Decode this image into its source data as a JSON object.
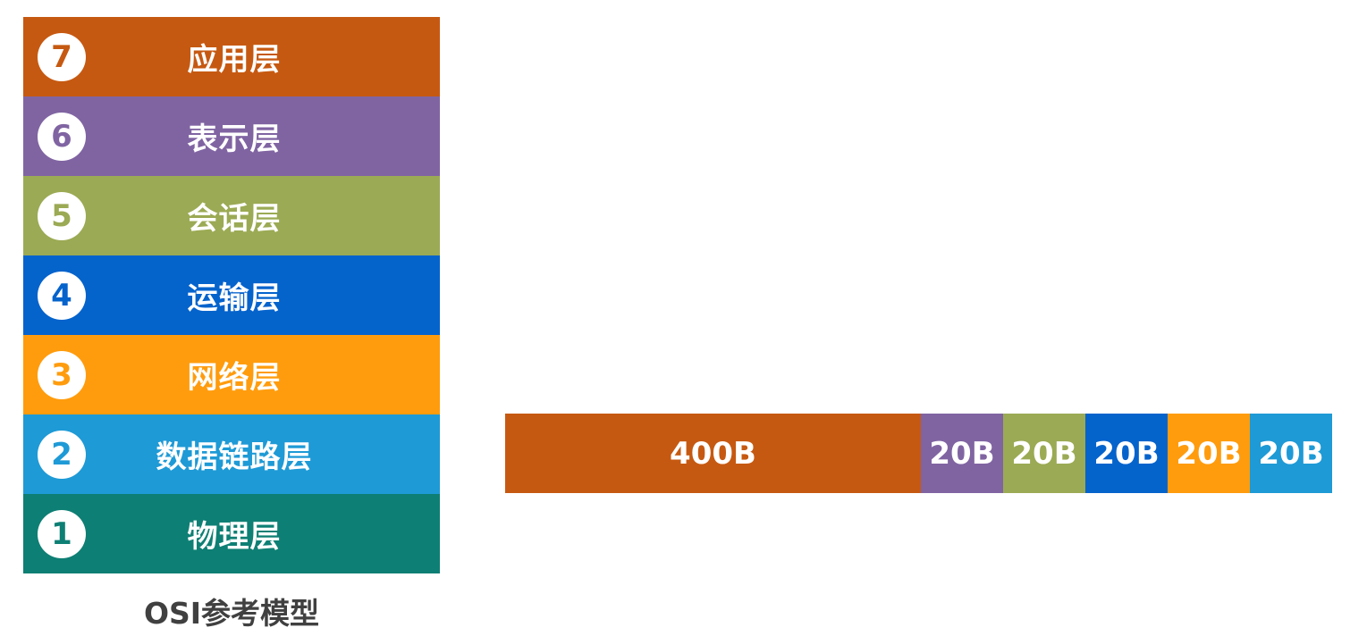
{
  "layers": [
    {
      "num": "7",
      "label": "应用层",
      "color": "#C65911"
    },
    {
      "num": "6",
      "label": "表示层",
      "color": "#8064A2"
    },
    {
      "num": "5",
      "label": "会话层",
      "color": "#9BAA54"
    },
    {
      "num": "4",
      "label": "运输层",
      "color": "#0563CC"
    },
    {
      "num": "3",
      "label": "网络层",
      "color": "#FF9C0D"
    },
    {
      "num": "2",
      "label": "数据链路层",
      "color": "#1E9AD6"
    },
    {
      "num": "1",
      "label": "物理层",
      "color": "#0E7F74"
    }
  ],
  "caption": "OSI参考模型",
  "packet": [
    {
      "label": "400B",
      "bytes": 400,
      "color": "#C65911"
    },
    {
      "label": "20B",
      "bytes": 20,
      "color": "#8064A2"
    },
    {
      "label": "20B",
      "bytes": 20,
      "color": "#9BAA54"
    },
    {
      "label": "20B",
      "bytes": 20,
      "color": "#0563CC"
    },
    {
      "label": "20B",
      "bytes": 20,
      "color": "#FF9C0D"
    },
    {
      "label": "20B",
      "bytes": 20,
      "color": "#1E9AD6"
    }
  ]
}
